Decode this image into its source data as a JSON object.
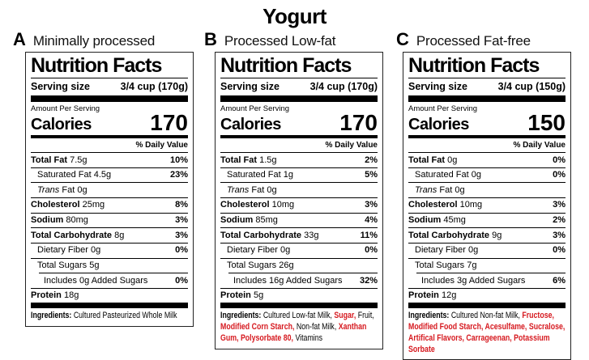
{
  "page_title": "Yogurt",
  "colors": {
    "additive_red": "#d6191f",
    "text_black": "#000000"
  },
  "labels": [
    {
      "letter": "A",
      "variant": "Minimally processed",
      "nf_title": "Nutrition Facts",
      "serving_label": "Serving size",
      "serving_value": "3/4 cup (170g)",
      "amount_per_serving": "Amount Per Serving",
      "calories_label": "Calories",
      "calories_value": "170",
      "daily_value_header": "% Daily Value",
      "rows": [
        {
          "name": "Total Fat",
          "amount": "7.5g",
          "pct": "10%"
        },
        {
          "name": "Saturated Fat",
          "amount": "4.5g",
          "pct": "23%"
        },
        {
          "name": "Trans",
          "amount": "Fat 0g",
          "pct": ""
        },
        {
          "name": "Cholesterol",
          "amount": "25mg",
          "pct": "8%"
        },
        {
          "name": "Sodium",
          "amount": "80mg",
          "pct": "3%"
        },
        {
          "name": "Total Carbohydrate",
          "amount": "8g",
          "pct": "3%"
        },
        {
          "name": "Dietary Fiber",
          "amount": "0g",
          "pct": "0%"
        },
        {
          "name": "Total Sugars",
          "amount": "5g",
          "pct": ""
        },
        {
          "name": "Includes 0g Added Sugars",
          "amount": "",
          "pct": "0%"
        },
        {
          "name": "Protein",
          "amount": "18g",
          "pct": ""
        }
      ],
      "ingredients_label": "Ingredients:",
      "ingredients": [
        {
          "text": "Cultured Pasteurized Whole Milk",
          "highlight": false
        }
      ]
    },
    {
      "letter": "B",
      "variant": "Processed Low-fat",
      "nf_title": "Nutrition Facts",
      "serving_label": "Serving size",
      "serving_value": "3/4 cup (170g)",
      "amount_per_serving": "Amount Per Serving",
      "calories_label": "Calories",
      "calories_value": "170",
      "daily_value_header": "% Daily Value",
      "rows": [
        {
          "name": "Total Fat",
          "amount": "1.5g",
          "pct": "2%"
        },
        {
          "name": "Saturated Fat",
          "amount": "1g",
          "pct": "5%"
        },
        {
          "name": "Trans",
          "amount": "Fat 0g",
          "pct": ""
        },
        {
          "name": "Cholesterol",
          "amount": "10mg",
          "pct": "3%"
        },
        {
          "name": "Sodium",
          "amount": "85mg",
          "pct": "4%"
        },
        {
          "name": "Total Carbohydrate",
          "amount": "33g",
          "pct": "11%"
        },
        {
          "name": "Dietary Fiber",
          "amount": "0g",
          "pct": "0%"
        },
        {
          "name": "Total Sugars",
          "amount": "26g",
          "pct": ""
        },
        {
          "name": "Includes 16g Added Sugars",
          "amount": "",
          "pct": "32%"
        },
        {
          "name": "Protein",
          "amount": "5g",
          "pct": ""
        }
      ],
      "ingredients_label": "Ingredients:",
      "ingredients": [
        {
          "text": "Cultured Low-fat Milk",
          "highlight": false
        },
        {
          "text": "Sugar",
          "highlight": true
        },
        {
          "text": "Fruit",
          "highlight": false
        },
        {
          "text": "Modified Corn Starch",
          "highlight": true
        },
        {
          "text": "Non-fat Milk",
          "highlight": false
        },
        {
          "text": "Xanthan Gum",
          "highlight": true
        },
        {
          "text": "Polysorbate 80",
          "highlight": true
        },
        {
          "text": "Vitamins",
          "highlight": false
        }
      ]
    },
    {
      "letter": "C",
      "variant": "Processed Fat-free",
      "nf_title": "Nutrition Facts",
      "serving_label": "Serving size",
      "serving_value": "3/4 cup (150g)",
      "amount_per_serving": "Amount Per Serving",
      "calories_label": "Calories",
      "calories_value": "150",
      "daily_value_header": "% Daily Value",
      "rows": [
        {
          "name": "Total Fat",
          "amount": "0g",
          "pct": "0%"
        },
        {
          "name": "Saturated Fat",
          "amount": "0g",
          "pct": "0%"
        },
        {
          "name": "Trans",
          "amount": "Fat 0g",
          "pct": ""
        },
        {
          "name": "Cholesterol",
          "amount": "10mg",
          "pct": "3%"
        },
        {
          "name": "Sodium",
          "amount": "45mg",
          "pct": "2%"
        },
        {
          "name": "Total Carbohydrate",
          "amount": "9g",
          "pct": "3%"
        },
        {
          "name": "Dietary Fiber",
          "amount": "0g",
          "pct": "0%"
        },
        {
          "name": "Total Sugars",
          "amount": "7g",
          "pct": ""
        },
        {
          "name": "Includes 3g Added Sugars",
          "amount": "",
          "pct": "6%"
        },
        {
          "name": "Protein",
          "amount": "12g",
          "pct": ""
        }
      ],
      "ingredients_label": "Ingredients:",
      "ingredients": [
        {
          "text": "Cultured Non-fat Milk",
          "highlight": false
        },
        {
          "text": "Fructose",
          "highlight": true
        },
        {
          "text": "Modified Food Starch",
          "highlight": true
        },
        {
          "text": "Acesulfame",
          "highlight": true
        },
        {
          "text": "Sucralose",
          "highlight": true
        },
        {
          "text": "Artifical Flavors",
          "highlight": true
        },
        {
          "text": "Carrageenan",
          "highlight": true
        },
        {
          "text": "Potassium Sorbate",
          "highlight": true
        }
      ]
    }
  ]
}
